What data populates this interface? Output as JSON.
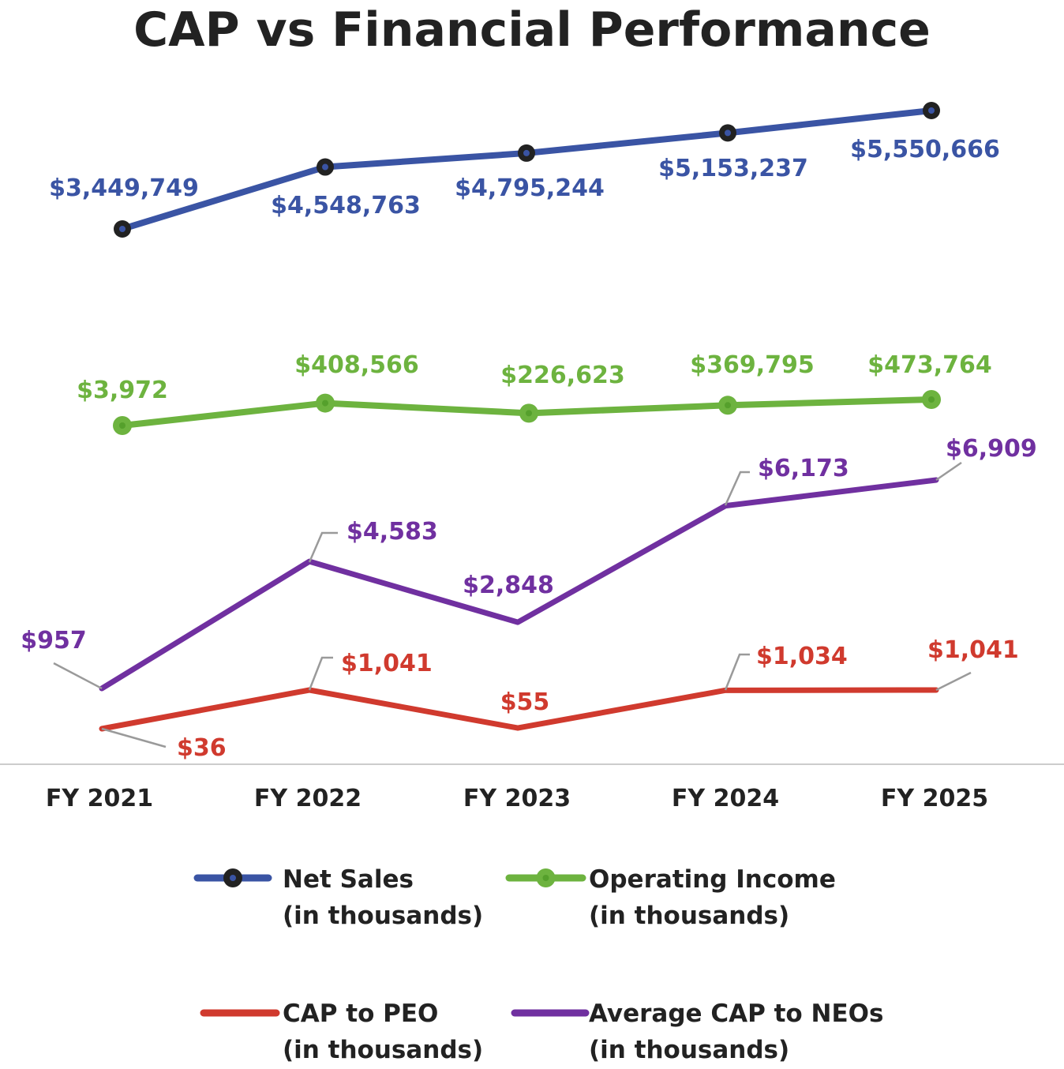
{
  "chart_data": {
    "type": "line",
    "title": "CAP vs Financial Performance",
    "categories": [
      "FY 2021",
      "FY 2022",
      "FY 2023",
      "FY 2024",
      "FY 2025"
    ],
    "series": [
      {
        "name": "Net Sales (in thousands)",
        "legend_line1": "Net Sales",
        "legend_line2": "(in thousands)",
        "color": "#3a54a4",
        "marker": "dark-ring",
        "values": [
          3449749,
          4548763,
          4795244,
          5153237,
          5550666
        ],
        "labels": [
          "$3,449,749",
          "$4,548,763",
          "$4,795,244",
          "$5,153,237",
          "$5,550,666"
        ]
      },
      {
        "name": "Operating Income (in thousands)",
        "legend_line1": "Operating Income",
        "legend_line2": "(in thousands)",
        "color": "#6db33f",
        "marker": "green-dot",
        "values": [
          3972,
          408566,
          226623,
          369795,
          473764
        ],
        "labels": [
          "$3,972",
          "$408,566",
          "$226,623",
          "$369,795",
          "$473,764"
        ]
      },
      {
        "name": "Average CAP to NEOs (in thousands)",
        "legend_line1": "Average CAP to NEOs",
        "legend_line2": "(in thousands)",
        "color": "#7030a0",
        "marker": "none",
        "values": [
          957,
          4583,
          2848,
          6173,
          6909
        ],
        "labels": [
          "$957",
          "$4,583",
          "$2,848",
          "$6,173",
          "$6,909"
        ]
      },
      {
        "name": "CAP to PEO (in thousands)",
        "legend_line1": "CAP to PEO",
        "legend_line2": "(in thousands)",
        "color": "#d03a2e",
        "marker": "none",
        "values": [
          36,
          1041,
          55,
          1034,
          1041
        ],
        "labels": [
          "$36",
          "$1,041",
          "$55",
          "$1,034",
          "$1,041"
        ]
      }
    ],
    "grid": false,
    "legend_position": "bottom"
  }
}
